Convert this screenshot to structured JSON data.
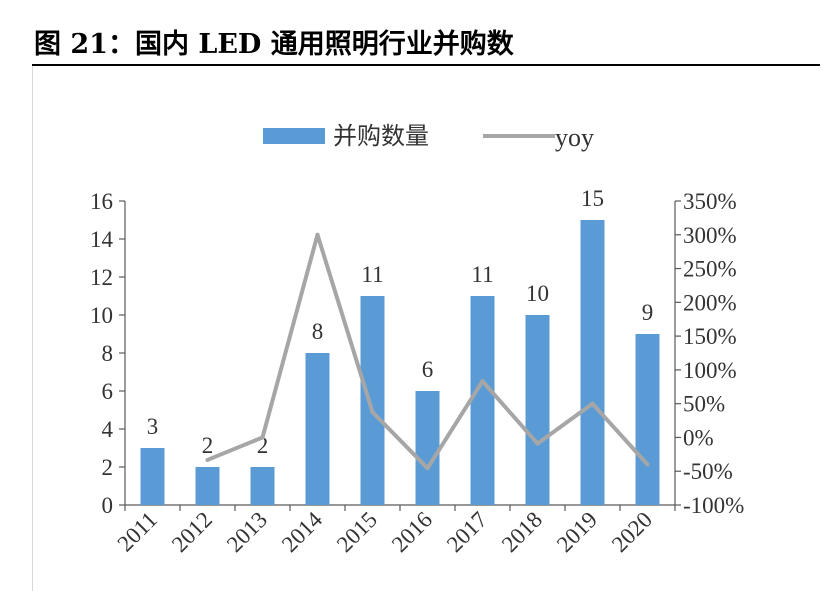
{
  "figure": {
    "title": "图 21：国内 LED 通用照明行业并购数"
  },
  "colors": {
    "bar": "#5b9bd5",
    "line": "#a6a6a6",
    "axis": "#595959",
    "text": "#333333"
  },
  "chart_data": {
    "type": "bar",
    "categories": [
      "2011",
      "2012",
      "2013",
      "2014",
      "2015",
      "2016",
      "2017",
      "2018",
      "2019",
      "2020"
    ],
    "series": [
      {
        "name": "并购数量",
        "type": "bar",
        "axis": "left",
        "values": [
          3,
          2,
          2,
          8,
          11,
          6,
          11,
          10,
          15,
          9
        ],
        "labels": [
          "3",
          "2",
          "2",
          "8",
          "11",
          "6",
          "11",
          "10",
          "15",
          "9"
        ]
      },
      {
        "name": "yoy",
        "type": "line",
        "axis": "right",
        "values": [
          null,
          -33.3,
          0,
          300,
          37.5,
          -45.5,
          83.3,
          -9.1,
          50,
          -40
        ]
      }
    ],
    "y_left": {
      "min": 0,
      "max": 16,
      "ticks": [
        "0",
        "2",
        "4",
        "6",
        "8",
        "10",
        "12",
        "14",
        "16"
      ]
    },
    "y_right": {
      "min": -100,
      "max": 350,
      "ticks": [
        "-100%",
        "-50%",
        "0%",
        "50%",
        "100%",
        "150%",
        "200%",
        "250%",
        "300%",
        "350%"
      ]
    },
    "legend": {
      "position": "top-center"
    },
    "grid": false
  }
}
